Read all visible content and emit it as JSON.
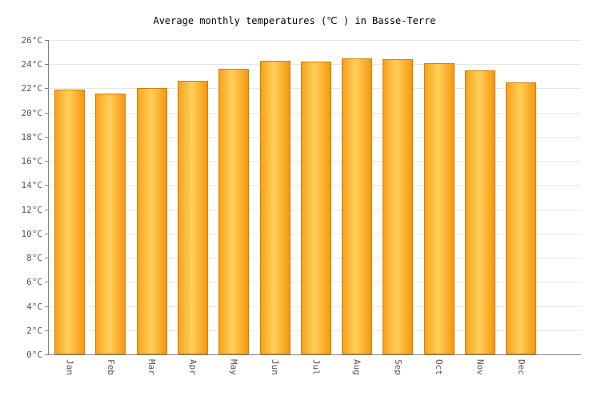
{
  "chart_data": {
    "type": "bar",
    "title": "Average monthly temperatures (℃ ) in Basse-Terre",
    "categories": [
      "Jan",
      "Feb",
      "Mar",
      "Apr",
      "May",
      "Jun",
      "Jul",
      "Aug",
      "Sep",
      "Oct",
      "Nov",
      "Dec"
    ],
    "values": [
      21.9,
      21.6,
      22.0,
      22.6,
      23.6,
      24.3,
      24.2,
      24.5,
      24.4,
      24.1,
      23.5,
      22.5
    ],
    "unit": "°C",
    "xlabel": "",
    "ylabel": "",
    "ylim": [
      0,
      26
    ],
    "ytick_step": 2,
    "grid": true,
    "legend": "none",
    "colors": {
      "bar_gradient_left": "#F9A11B",
      "bar_gradient_mid": "#FFD05A",
      "bar_gradient_right": "#F6980E",
      "bar_border": "#CE8000",
      "grid_line": "#e6e6e6",
      "axis_line": "#808080",
      "tick_text": "#555555",
      "title_text": "#000000",
      "background": "#ffffff"
    }
  }
}
